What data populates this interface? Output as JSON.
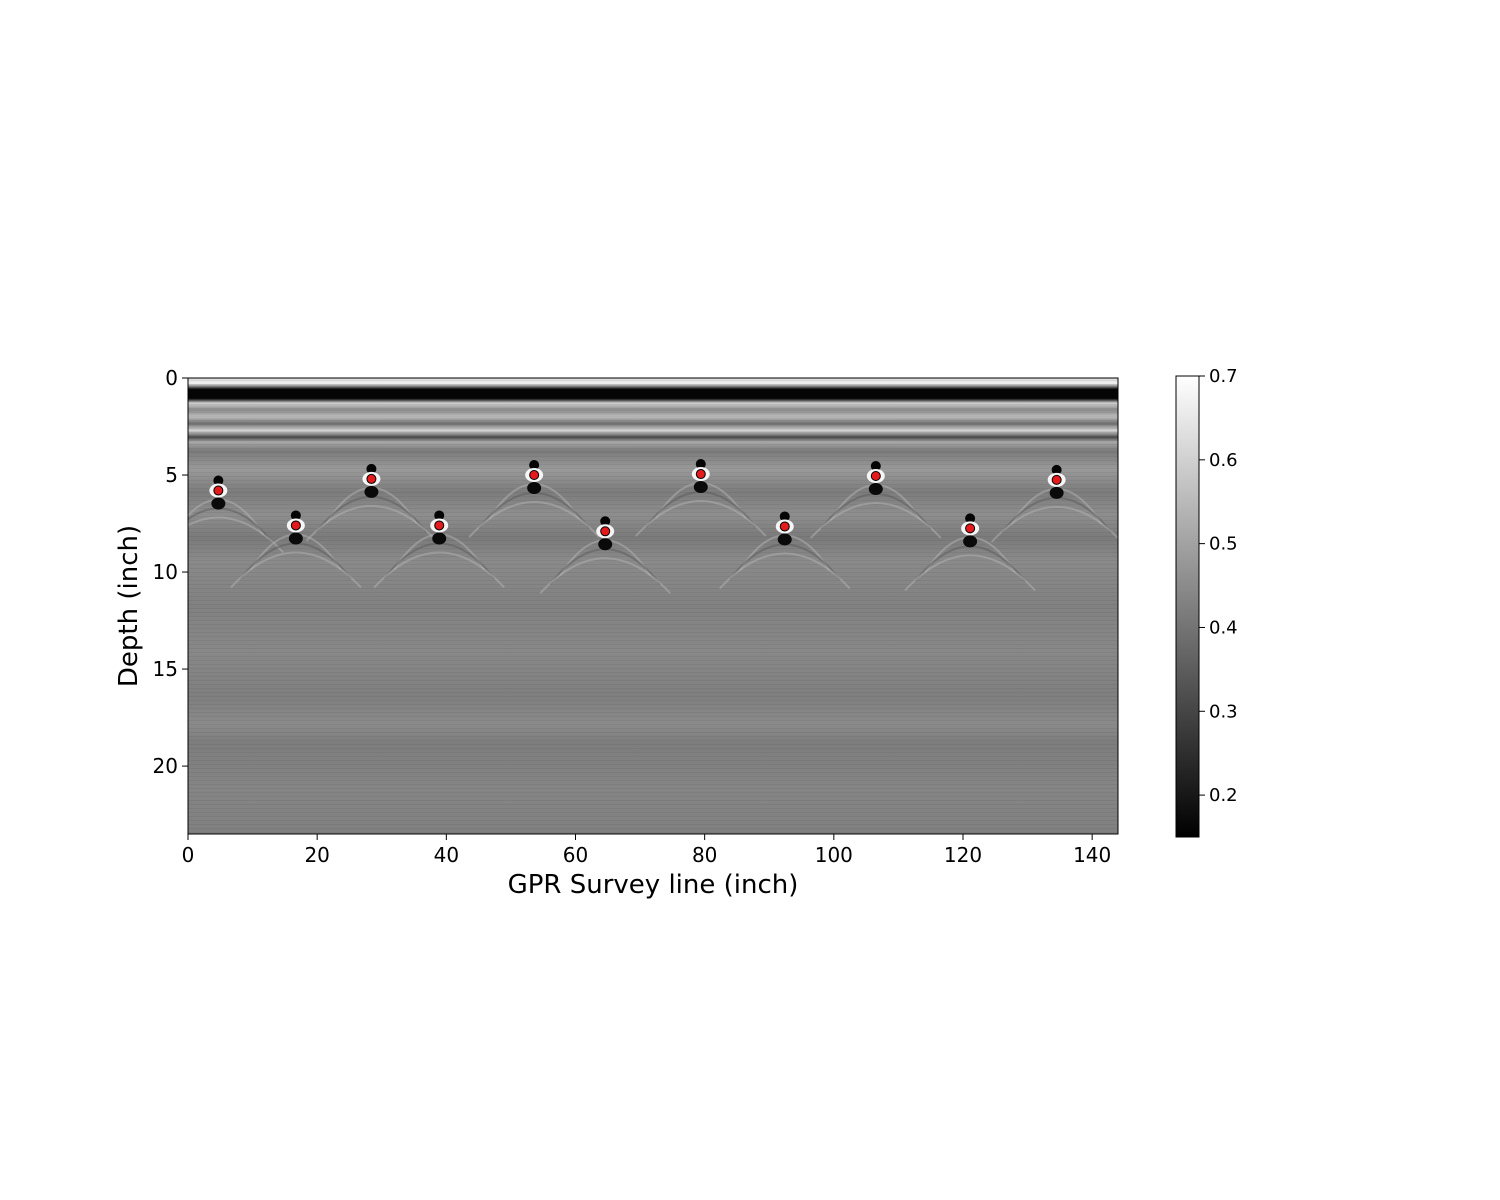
{
  "chart_data": {
    "type": "scatter",
    "title": "",
    "xlabel": "GPR Survey line (inch)",
    "ylabel": "Depth (inch)",
    "xlim": [
      0,
      144
    ],
    "ylim": [
      23.5,
      0
    ],
    "x_ticks": [
      0,
      20,
      40,
      60,
      80,
      100,
      120,
      140
    ],
    "y_ticks": [
      0,
      5,
      10,
      15,
      20
    ],
    "background": "grayscale GPR radargram image",
    "grid": false,
    "legend": "none",
    "series": [
      {
        "marker_color": "#e41a1c",
        "marker_edge": "#000000",
        "points": [
          {
            "x": 4.7,
            "y": 5.8
          },
          {
            "x": 28.4,
            "y": 5.2
          },
          {
            "x": 53.6,
            "y": 5.0
          },
          {
            "x": 79.4,
            "y": 4.95
          },
          {
            "x": 106.5,
            "y": 5.05
          },
          {
            "x": 134.5,
            "y": 5.25
          },
          {
            "x": 16.7,
            "y": 7.6
          },
          {
            "x": 38.9,
            "y": 7.6
          },
          {
            "x": 64.6,
            "y": 7.9
          },
          {
            "x": 92.4,
            "y": 7.65
          },
          {
            "x": 121.1,
            "y": 7.75
          }
        ]
      }
    ],
    "colorbar": {
      "range": [
        0.15,
        0.7
      ],
      "ticks": [
        0.2,
        0.3,
        0.4,
        0.5,
        0.6,
        0.7
      ],
      "colormap": "gray"
    }
  }
}
